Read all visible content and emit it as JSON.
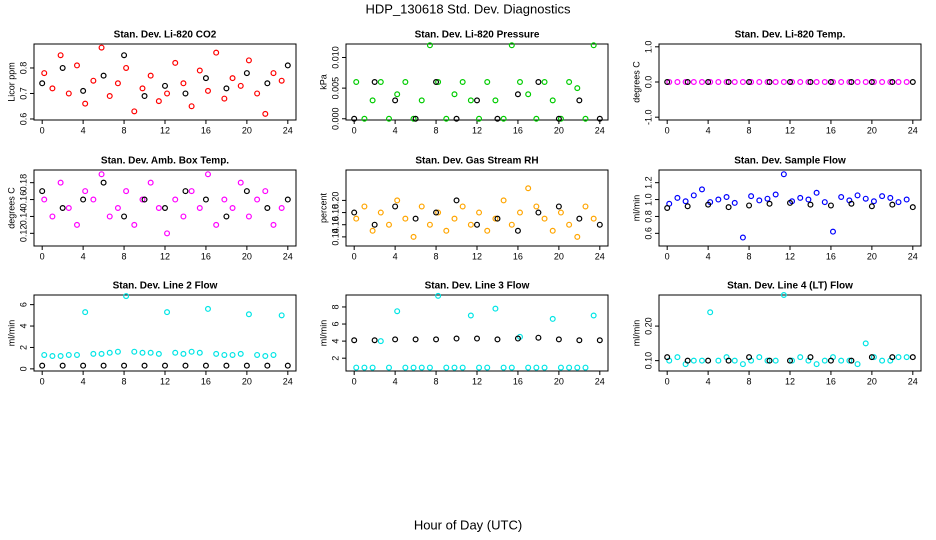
{
  "title": "HDP_130618  Std. Dev. Diagnostics",
  "xlabel": "Hour of Day (UTC)",
  "chart_data": [
    {
      "type": "scatter",
      "title": "Stan. Dev. Li-820 CO2",
      "ylabel": "Licor ppm",
      "xlim": [
        -0.8,
        24.8
      ],
      "xticks": [
        0,
        4,
        8,
        12,
        16,
        20,
        24
      ],
      "ylim": [
        0.596,
        0.894
      ],
      "yticks": [
        0.6,
        0.7,
        0.8
      ],
      "series": [
        {
          "color": "#ff0000",
          "x": [
            0.2,
            1.0,
            1.8,
            2.6,
            3.4,
            4.2,
            5.0,
            5.8,
            6.6,
            7.4,
            8.2,
            9.0,
            9.8,
            10.6,
            11.4,
            12.2,
            13.0,
            13.8,
            14.6,
            15.4,
            16.2,
            17.0,
            17.8,
            18.6,
            19.4,
            20.2,
            21.0,
            21.8,
            22.6,
            23.4
          ],
          "values": [
            0.78,
            0.72,
            0.85,
            0.7,
            0.81,
            0.66,
            0.75,
            0.88,
            0.69,
            0.74,
            0.8,
            0.63,
            0.72,
            0.77,
            0.67,
            0.7,
            0.82,
            0.74,
            0.65,
            0.79,
            0.71,
            0.86,
            0.68,
            0.76,
            0.73,
            0.83,
            0.7,
            0.62,
            0.78,
            0.75
          ]
        },
        {
          "color": "#000000",
          "x": [
            0,
            2,
            4,
            6,
            8,
            10,
            12,
            14,
            16,
            18,
            20,
            22,
            24
          ],
          "values": [
            0.74,
            0.8,
            0.71,
            0.77,
            0.85,
            0.69,
            0.73,
            0.7,
            0.76,
            0.72,
            0.78,
            0.74,
            0.81
          ]
        }
      ]
    },
    {
      "type": "scatter",
      "title": "Stan. Dev. Li-820 Pressure",
      "ylabel": "kPa",
      "xlim": [
        -0.8,
        24.8
      ],
      "xticks": [
        0,
        4,
        8,
        12,
        16,
        20,
        24
      ],
      "ylim": [
        -0.0002,
        0.0122
      ],
      "yticks": [
        {
          "value": 0,
          "label": "0.000"
        },
        {
          "value": 0.005,
          "label": "0.005"
        },
        {
          "value": 0.01,
          "label": "0.010"
        }
      ],
      "series": [
        {
          "color": "#00cc00",
          "x": [
            0.2,
            1.0,
            1.8,
            2.6,
            3.4,
            4.2,
            5.0,
            5.8,
            6.6,
            7.4,
            8.2,
            9.0,
            9.8,
            10.6,
            11.4,
            12.2,
            13.0,
            13.8,
            14.6,
            15.4,
            16.2,
            17.0,
            17.8,
            18.6,
            19.4,
            20.2,
            21.0,
            21.8,
            22.6,
            23.4
          ],
          "values": [
            0.006,
            0.0,
            0.003,
            0.006,
            0.0,
            0.004,
            0.006,
            0.0,
            0.003,
            0.012,
            0.006,
            0.0,
            0.004,
            0.006,
            0.003,
            0.0,
            0.006,
            0.003,
            0.0,
            0.012,
            0.006,
            0.004,
            0.0,
            0.006,
            0.003,
            0.0,
            0.006,
            0.005,
            0.0,
            0.012
          ]
        },
        {
          "color": "#000000",
          "x": [
            0,
            2,
            4,
            6,
            8,
            10,
            12,
            14,
            16,
            18,
            20,
            22,
            24
          ],
          "values": [
            0.0,
            0.006,
            0.003,
            0.0,
            0.006,
            0.0,
            0.003,
            0.0,
            0.004,
            0.006,
            0.0,
            0.003,
            0.0
          ]
        }
      ]
    },
    {
      "type": "scatter",
      "title": "Stan. Dev. Li-820 Temp.",
      "ylabel": "degrees C",
      "xlim": [
        -0.8,
        24.8
      ],
      "xticks": [
        0,
        4,
        8,
        12,
        16,
        20,
        24
      ],
      "ylim": [
        -1.08,
        1.08
      ],
      "yticks": [
        {
          "value": -1,
          "label": "-1.0"
        },
        {
          "value": 0,
          "label": "0.0"
        },
        {
          "value": 1,
          "label": "1.0"
        }
      ],
      "series": [
        {
          "color": "#ff00ff",
          "x": [
            0.2,
            1.0,
            1.8,
            2.6,
            3.4,
            4.2,
            5.0,
            5.8,
            6.6,
            7.4,
            8.2,
            9.0,
            9.8,
            10.6,
            11.4,
            12.2,
            13.0,
            13.8,
            14.6,
            15.4,
            16.2,
            17.0,
            17.8,
            18.6,
            19.4,
            20.2,
            21.0,
            21.8,
            22.6,
            23.4
          ],
          "values": [
            0,
            0,
            0,
            0,
            0,
            0,
            0,
            0,
            0,
            0,
            0,
            0,
            0,
            0,
            0,
            0,
            0,
            0,
            0,
            0,
            0,
            0,
            0,
            0,
            0,
            0,
            0,
            0,
            0,
            0
          ]
        },
        {
          "color": "#000000",
          "x": [
            0,
            2,
            4,
            6,
            8,
            10,
            12,
            14,
            16,
            18,
            20,
            22,
            24
          ],
          "values": [
            0,
            0,
            0,
            0,
            0,
            0,
            0,
            0,
            0,
            0,
            0,
            0,
            0
          ]
        }
      ]
    },
    {
      "type": "scatter",
      "title": "Stan. Dev. Amb. Box Temp.",
      "ylabel": "degrees C",
      "xlim": [
        -0.8,
        24.8
      ],
      "xticks": [
        0,
        4,
        8,
        12,
        16,
        20,
        24
      ],
      "ylim": [
        0.105,
        0.195
      ],
      "yticks": [
        0.12,
        0.14,
        0.16,
        0.18
      ],
      "series": [
        {
          "color": "#ff00ff",
          "x": [
            0.2,
            1.0,
            1.8,
            2.6,
            3.4,
            4.2,
            5.0,
            5.8,
            6.6,
            7.4,
            8.2,
            9.0,
            9.8,
            10.6,
            11.4,
            12.2,
            13.0,
            13.8,
            14.6,
            15.4,
            16.2,
            17.0,
            17.8,
            18.6,
            19.4,
            20.2,
            21.0,
            21.8,
            22.6,
            23.4
          ],
          "values": [
            0.16,
            0.14,
            0.18,
            0.15,
            0.13,
            0.17,
            0.16,
            0.19,
            0.14,
            0.15,
            0.17,
            0.13,
            0.16,
            0.18,
            0.15,
            0.12,
            0.16,
            0.14,
            0.17,
            0.15,
            0.19,
            0.13,
            0.16,
            0.15,
            0.18,
            0.14,
            0.16,
            0.17,
            0.13,
            0.15
          ]
        },
        {
          "color": "#000000",
          "x": [
            0,
            2,
            4,
            6,
            8,
            10,
            12,
            14,
            16,
            18,
            20,
            22,
            24
          ],
          "values": [
            0.17,
            0.15,
            0.16,
            0.18,
            0.14,
            0.16,
            0.15,
            0.17,
            0.16,
            0.14,
            0.17,
            0.15,
            0.16
          ]
        }
      ]
    },
    {
      "type": "scatter",
      "title": "Stan. Dev. Gas Stream RH",
      "ylabel": "percent",
      "xlim": [
        -0.8,
        24.8
      ],
      "xticks": [
        0,
        4,
        8,
        12,
        16,
        20,
        24
      ],
      "ylim": [
        0.125,
        0.25
      ],
      "yticks": [
        0.14,
        0.16,
        0.18,
        {
          "value": 0.2,
          "label": "0.20"
        }
      ],
      "series": [
        {
          "color": "#ffa500",
          "x": [
            0.2,
            1.0,
            1.8,
            2.6,
            3.4,
            4.2,
            5.0,
            5.8,
            6.6,
            7.4,
            8.2,
            9.0,
            9.8,
            10.6,
            11.4,
            12.2,
            13.0,
            13.8,
            14.6,
            15.4,
            16.2,
            17.0,
            17.8,
            18.6,
            19.4,
            20.2,
            21.0,
            21.8,
            22.6,
            23.4
          ],
          "values": [
            0.17,
            0.19,
            0.15,
            0.18,
            0.16,
            0.2,
            0.17,
            0.14,
            0.19,
            0.16,
            0.18,
            0.15,
            0.17,
            0.19,
            0.16,
            0.18,
            0.15,
            0.17,
            0.2,
            0.16,
            0.18,
            0.22,
            0.19,
            0.17,
            0.15,
            0.18,
            0.16,
            0.14,
            0.19,
            0.17
          ]
        },
        {
          "color": "#000000",
          "x": [
            0,
            2,
            4,
            6,
            8,
            10,
            12,
            14,
            16,
            18,
            20,
            22,
            24
          ],
          "values": [
            0.18,
            0.16,
            0.19,
            0.17,
            0.18,
            0.2,
            0.16,
            0.17,
            0.15,
            0.18,
            0.19,
            0.17,
            0.16
          ]
        }
      ]
    },
    {
      "type": "scatter",
      "title": "Stan. Dev. Sample Flow",
      "ylabel": "ml/min",
      "xlim": [
        -0.8,
        24.8
      ],
      "xticks": [
        0,
        4,
        8,
        12,
        16,
        20,
        24
      ],
      "ylim": [
        0.45,
        1.35
      ],
      "yticks": [
        0.6,
        0.8,
        {
          "value": 1,
          "label": "1.0"
        },
        1.2
      ],
      "series": [
        {
          "color": "#0000ff",
          "x": [
            0.2,
            1.0,
            1.8,
            2.6,
            3.4,
            4.2,
            5.0,
            5.8,
            6.6,
            7.4,
            8.2,
            9.0,
            9.8,
            10.6,
            11.4,
            12.2,
            13.0,
            13.8,
            14.6,
            15.4,
            16.2,
            17.0,
            17.8,
            18.6,
            19.4,
            20.2,
            21.0,
            21.8,
            22.6,
            23.4
          ],
          "values": [
            0.95,
            1.02,
            0.98,
            1.05,
            1.12,
            0.97,
            1.0,
            1.03,
            0.96,
            0.55,
            1.04,
            0.99,
            1.01,
            1.06,
            1.3,
            0.98,
            1.02,
            1.0,
            1.08,
            0.97,
            0.62,
            1.03,
            0.99,
            1.05,
            1.01,
            0.98,
            1.04,
            1.02,
            0.97,
            1.0
          ]
        },
        {
          "color": "#000000",
          "x": [
            0,
            2,
            4,
            6,
            8,
            10,
            12,
            14,
            16,
            18,
            20,
            22,
            24
          ],
          "values": [
            0.9,
            0.92,
            0.94,
            0.91,
            0.93,
            0.95,
            0.96,
            0.94,
            0.93,
            0.95,
            0.92,
            0.94,
            0.91
          ]
        }
      ]
    },
    {
      "type": "scatter",
      "title": "Stan. Dev. Line 2 Flow",
      "ylabel": "ml/min",
      "xlim": [
        -0.8,
        24.8
      ],
      "xticks": [
        0,
        4,
        8,
        12,
        16,
        20,
        24
      ],
      "ylim": [
        -0.2,
        6.9
      ],
      "yticks": [
        0,
        2,
        4,
        6
      ],
      "series": [
        {
          "color": "#00e5e5",
          "x": [
            0.2,
            1.0,
            1.8,
            2.6,
            3.4,
            4.2,
            5.0,
            5.8,
            6.6,
            7.4,
            8.2,
            9.0,
            9.8,
            10.6,
            11.4,
            12.2,
            13.0,
            13.8,
            14.6,
            15.4,
            16.2,
            17.0,
            17.8,
            18.6,
            19.4,
            20.2,
            21.0,
            21.8,
            22.6,
            23.4
          ],
          "values": [
            1.3,
            1.2,
            1.2,
            1.3,
            1.3,
            5.3,
            1.4,
            1.4,
            1.5,
            1.6,
            6.8,
            1.6,
            1.5,
            1.5,
            1.4,
            5.3,
            1.5,
            1.4,
            1.6,
            1.5,
            5.6,
            1.4,
            1.3,
            1.3,
            1.4,
            5.1,
            1.3,
            1.2,
            1.3,
            5.0
          ]
        },
        {
          "color": "#000000",
          "x": [
            0,
            2,
            4,
            6,
            8,
            10,
            12,
            14,
            16,
            18,
            20,
            22,
            24
          ],
          "values": [
            0.3,
            0.3,
            0.3,
            0.3,
            0.3,
            0.3,
            0.3,
            0.3,
            0.3,
            0.3,
            0.3,
            0.3,
            0.3
          ]
        }
      ]
    },
    {
      "type": "scatter",
      "title": "Stan. Dev. Line 3 Flow",
      "ylabel": "ml/min",
      "xlim": [
        -0.8,
        24.8
      ],
      "xticks": [
        0,
        4,
        8,
        12,
        16,
        20,
        24
      ],
      "ylim": [
        0.5,
        9.4
      ],
      "yticks": [
        2,
        4,
        6,
        8
      ],
      "series": [
        {
          "color": "#00e5e5",
          "x": [
            0.2,
            1.0,
            1.8,
            2.6,
            3.4,
            4.2,
            5.0,
            5.8,
            6.6,
            7.4,
            8.2,
            9.0,
            9.8,
            10.6,
            11.4,
            12.2,
            13.0,
            13.8,
            14.6,
            15.4,
            16.2,
            17.0,
            17.8,
            18.6,
            19.4,
            20.2,
            21.0,
            21.8,
            22.6,
            23.4
          ],
          "values": [
            0.9,
            0.9,
            0.9,
            4.0,
            0.9,
            7.5,
            0.9,
            0.9,
            0.9,
            0.9,
            9.3,
            0.9,
            0.9,
            0.9,
            7.0,
            0.9,
            0.9,
            7.8,
            0.9,
            0.9,
            4.5,
            0.9,
            0.9,
            0.9,
            6.6,
            0.9,
            0.9,
            0.9,
            0.9,
            7.0
          ]
        },
        {
          "color": "#000000",
          "x": [
            0,
            2,
            4,
            6,
            8,
            10,
            12,
            14,
            16,
            18,
            20,
            22,
            24
          ],
          "values": [
            4.1,
            4.1,
            4.2,
            4.2,
            4.2,
            4.3,
            4.3,
            4.2,
            4.3,
            4.4,
            4.2,
            4.1,
            4.1
          ]
        }
      ]
    },
    {
      "type": "scatter",
      "title": "Stan. Dev. Line 4 (LT) Flow",
      "ylabel": "ml/min",
      "xlim": [
        -0.8,
        24.8
      ],
      "xticks": [
        0,
        4,
        8,
        12,
        16,
        20,
        24
      ],
      "ylim": [
        0.07,
        0.29
      ],
      "yticks": [
        {
          "value": 0.1,
          "label": "0.10"
        },
        {
          "value": 0.2,
          "label": "0.20"
        }
      ],
      "series": [
        {
          "color": "#00e5e5",
          "x": [
            0.2,
            1.0,
            1.8,
            2.6,
            3.4,
            4.2,
            5.0,
            5.8,
            6.6,
            7.4,
            8.2,
            9.0,
            9.8,
            10.6,
            11.4,
            12.2,
            13.0,
            13.8,
            14.6,
            15.4,
            16.2,
            17.0,
            17.8,
            18.6,
            19.4,
            20.2,
            21.0,
            21.8,
            22.6,
            23.4
          ],
          "values": [
            0.1,
            0.11,
            0.09,
            0.1,
            0.1,
            0.24,
            0.1,
            0.11,
            0.1,
            0.09,
            0.1,
            0.11,
            0.1,
            0.1,
            0.29,
            0.1,
            0.11,
            0.1,
            0.09,
            0.1,
            0.11,
            0.1,
            0.1,
            0.09,
            0.15,
            0.11,
            0.1,
            0.1,
            0.11,
            0.11
          ]
        },
        {
          "color": "#000000",
          "x": [
            0,
            2,
            4,
            6,
            8,
            10,
            12,
            14,
            16,
            18,
            20,
            22,
            24
          ],
          "values": [
            0.11,
            0.1,
            0.1,
            0.1,
            0.11,
            0.1,
            0.1,
            0.11,
            0.1,
            0.1,
            0.11,
            0.11,
            0.11
          ]
        }
      ]
    }
  ]
}
